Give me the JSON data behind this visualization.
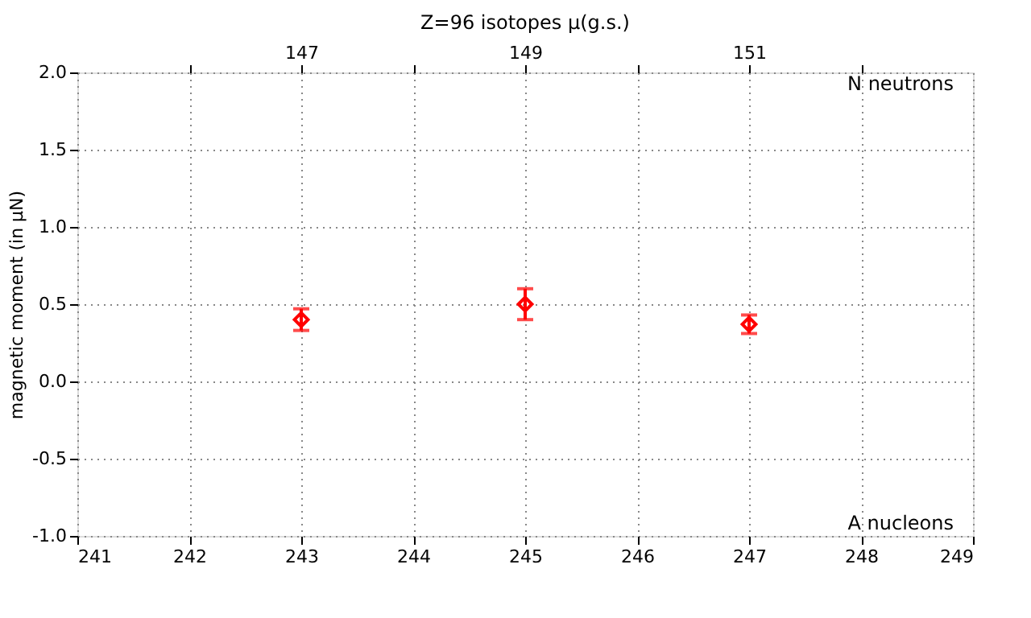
{
  "chart_data": {
    "type": "scatter",
    "title": "Z=96 isotopes μ(g.s.)",
    "xlabel": "A nucleons",
    "x2label": "N neutrons",
    "ylabel": "magnetic moment (in μN)",
    "x": [
      243,
      245,
      247
    ],
    "series": [
      {
        "color": "#ff0000",
        "values": [
          0.4,
          0.5,
          0.37
        ],
        "errors": [
          0.07,
          0.1,
          0.06
        ]
      }
    ],
    "xlim": [
      241,
      249
    ],
    "xticks": [
      241,
      242,
      243,
      244,
      245,
      246,
      247,
      248,
      249
    ],
    "x2lim": [
      145,
      153
    ],
    "x2ticks": [
      {
        "value": 146,
        "label": null
      },
      147,
      {
        "value": 148,
        "label": null
      },
      149,
      {
        "value": 150,
        "label": null
      },
      151,
      {
        "value": 152,
        "label": null
      }
    ],
    "ylim": [
      -1.0,
      2.0
    ],
    "yticks": [
      {
        "value": -1.0,
        "label": "-1.0"
      },
      {
        "value": -0.5,
        "label": "-0.5"
      },
      {
        "value": 0.0,
        "label": "0.0"
      },
      {
        "value": 0.5,
        "label": "0.5"
      },
      {
        "value": 1.0,
        "label": "1.0"
      },
      {
        "value": 1.5,
        "label": "1.5"
      },
      {
        "value": 2.0,
        "label": "2.0"
      }
    ],
    "grid": true,
    "legend": false,
    "marker": "diamond"
  }
}
